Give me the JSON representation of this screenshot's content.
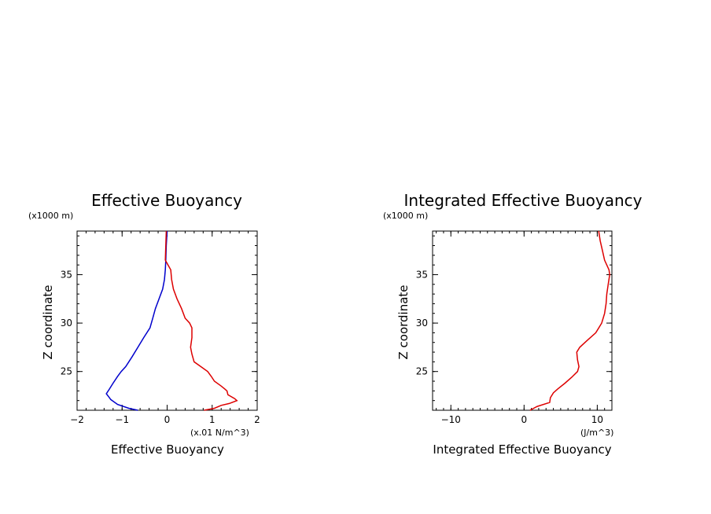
{
  "chart_data": [
    {
      "type": "line",
      "title": "Effective Buoyancy",
      "xlabel": "Effective Buoyancy",
      "ylabel": "Z coordinate",
      "x_unit": "(x.01 N/m^3)",
      "y_unit": "(x1000 m)",
      "xlim": [
        -2,
        2
      ],
      "ylim": [
        21,
        39.5
      ],
      "xticks": [
        -2,
        -1,
        0,
        1,
        2
      ],
      "yticks": [
        25,
        30,
        35
      ],
      "series": [
        {
          "color": "#0000cc",
          "points": [
            [
              0.0,
              39.5
            ],
            [
              -0.02,
              38
            ],
            [
              -0.03,
              36.5
            ],
            [
              -0.04,
              35.5
            ],
            [
              -0.06,
              34.5
            ],
            [
              -0.1,
              33.5
            ],
            [
              -0.18,
              32.5
            ],
            [
              -0.26,
              31.5
            ],
            [
              -0.32,
              30.5
            ],
            [
              -0.38,
              29.5
            ],
            [
              -0.52,
              28.5
            ],
            [
              -0.65,
              27.5
            ],
            [
              -0.78,
              26.5
            ],
            [
              -0.92,
              25.5
            ],
            [
              -1.02,
              25
            ],
            [
              -1.1,
              24.5
            ],
            [
              -1.2,
              23.8
            ],
            [
              -1.28,
              23.2
            ],
            [
              -1.35,
              22.7
            ],
            [
              -1.3,
              22.4
            ],
            [
              -1.25,
              22.1
            ],
            [
              -1.1,
              21.6
            ],
            [
              -0.85,
              21.2
            ],
            [
              -0.65,
              21
            ]
          ]
        },
        {
          "color": "#dd0000",
          "points": [
            [
              -0.02,
              39.5
            ],
            [
              -0.03,
              38
            ],
            [
              -0.04,
              36.5
            ],
            [
              0.02,
              36
            ],
            [
              0.08,
              35.5
            ],
            [
              0.1,
              34.5
            ],
            [
              0.14,
              33.5
            ],
            [
              0.22,
              32.5
            ],
            [
              0.32,
              31.5
            ],
            [
              0.4,
              30.5
            ],
            [
              0.5,
              30
            ],
            [
              0.55,
              29.5
            ],
            [
              0.55,
              28.5
            ],
            [
              0.52,
              27.5
            ],
            [
              0.55,
              26.8
            ],
            [
              0.6,
              26
            ],
            [
              0.75,
              25.5
            ],
            [
              0.9,
              25
            ],
            [
              0.98,
              24.5
            ],
            [
              1.05,
              24
            ],
            [
              1.2,
              23.5
            ],
            [
              1.28,
              23.2
            ],
            [
              1.33,
              23
            ],
            [
              1.35,
              22.6
            ],
            [
              1.5,
              22.2
            ],
            [
              1.55,
              22
            ],
            [
              1.38,
              21.7
            ],
            [
              1.2,
              21.5
            ],
            [
              1.05,
              21.2
            ],
            [
              0.82,
              21
            ]
          ]
        }
      ]
    },
    {
      "type": "line",
      "title": "Integrated Effective Buoyancy",
      "xlabel": "Integrated Effective Buoyancy",
      "ylabel": "Z coordinate",
      "x_unit": "(J/m^3)",
      "y_unit": "(x1000 m)",
      "xlim": [
        -12.5,
        12
      ],
      "ylim": [
        21,
        39.5
      ],
      "xticks": [
        -10,
        0,
        10
      ],
      "yticks": [
        25,
        30,
        35
      ],
      "series": [
        {
          "color": "#dd0000",
          "points": [
            [
              10.2,
              39.5
            ],
            [
              10.4,
              38.5
            ],
            [
              10.7,
              37.5
            ],
            [
              11.0,
              36.5
            ],
            [
              11.6,
              35.5
            ],
            [
              11.7,
              35
            ],
            [
              11.5,
              34
            ],
            [
              11.3,
              33
            ],
            [
              11.2,
              32
            ],
            [
              11.0,
              31
            ],
            [
              10.6,
              30
            ],
            [
              9.8,
              29
            ],
            [
              8.6,
              28.2
            ],
            [
              7.6,
              27.5
            ],
            [
              7.2,
              27
            ],
            [
              7.3,
              26.2
            ],
            [
              7.5,
              25.5
            ],
            [
              7.3,
              25
            ],
            [
              6.5,
              24.4
            ],
            [
              5.6,
              23.8
            ],
            [
              4.6,
              23.2
            ],
            [
              4.0,
              22.8
            ],
            [
              3.6,
              22.3
            ],
            [
              3.5,
              21.8
            ],
            [
              1.8,
              21.4
            ],
            [
              0.8,
              21
            ]
          ]
        }
      ]
    }
  ]
}
